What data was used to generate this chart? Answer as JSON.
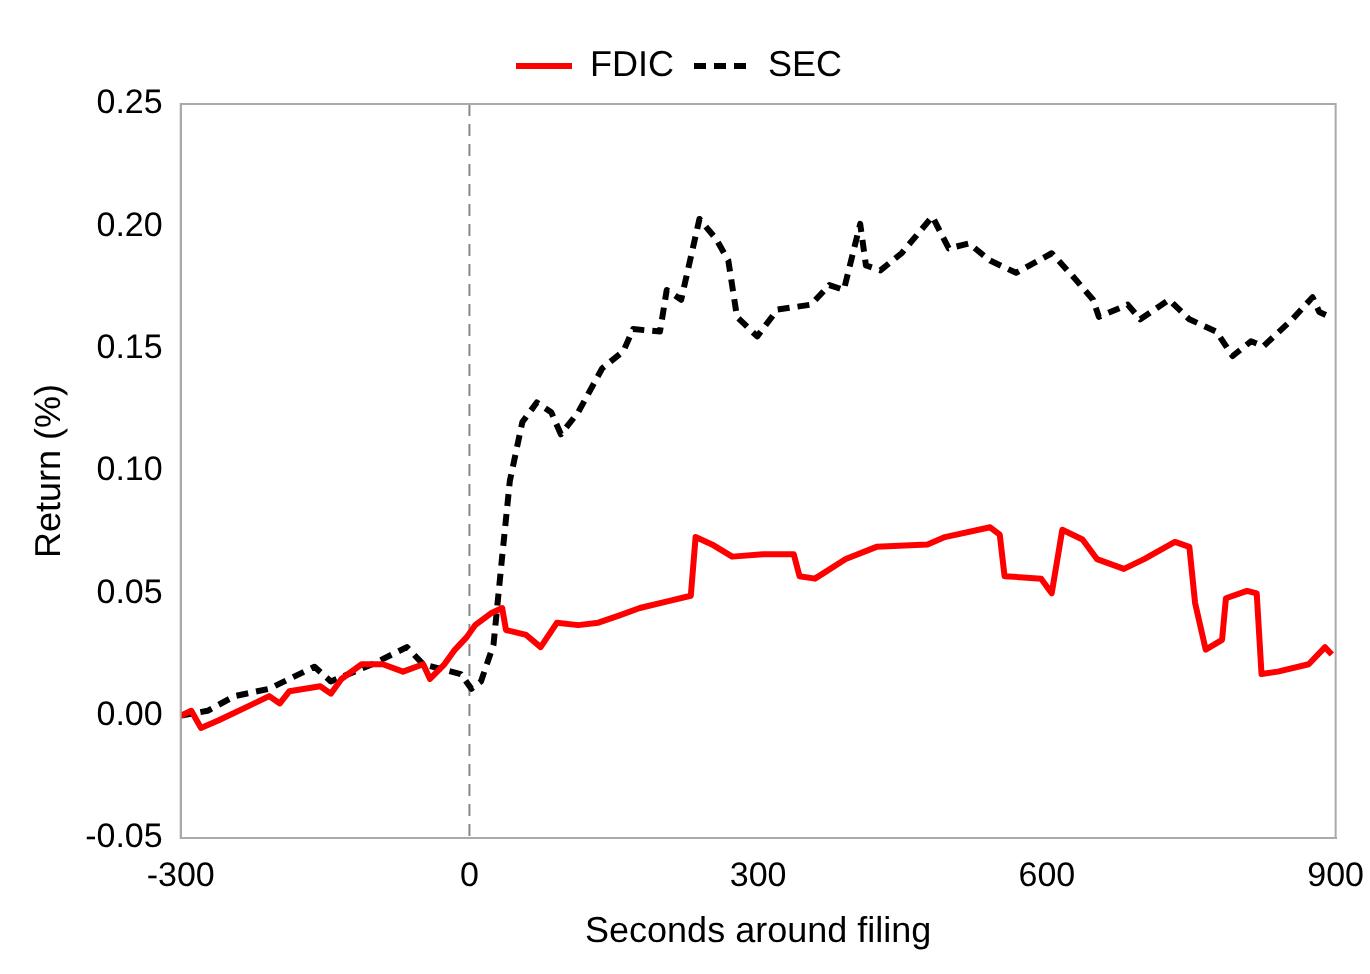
{
  "chart_data": {
    "type": "line",
    "xlabel": "Seconds around filing",
    "ylabel": "Return (%)",
    "xlim": [
      -300,
      900
    ],
    "xticks": [
      -300,
      0,
      300,
      600,
      900
    ],
    "ylim": [
      -0.05,
      0.25
    ],
    "yticks": [
      {
        "value": -0.05,
        "label": "-0.05"
      },
      {
        "value": 0,
        "label": "0.00"
      },
      {
        "value": 0.05,
        "label": "0.05"
      },
      {
        "value": 0.1,
        "label": "0.10"
      },
      {
        "value": 0.15,
        "label": "0.15"
      },
      {
        "value": 0.2,
        "label": "0.20"
      },
      {
        "value": 0.25,
        "label": "0.25"
      }
    ],
    "grid": false,
    "legend": "top",
    "ref_lines": [
      {
        "axis": "x",
        "value": 0,
        "color": "#888888",
        "line_style": "dashed"
      }
    ],
    "series": [
      {
        "name": "FDIC",
        "color": "#ff0000",
        "line_style": "solid",
        "x": [
          -300,
          -289,
          -279,
          -261,
          -229,
          -208,
          -197,
          -187,
          -155,
          -144,
          -133,
          -112,
          -90,
          -69,
          -48,
          -41,
          -26,
          -15,
          -3,
          6,
          23,
          34,
          38,
          59,
          74,
          91,
          113,
          134,
          156,
          177,
          209,
          230,
          235,
          252,
          273,
          305,
          337,
          343,
          359,
          391,
          423,
          476,
          494,
          541,
          551,
          556,
          594,
          605,
          616,
          637,
          652,
          680,
          701,
          733,
          748,
          754,
          765,
          782,
          786,
          808,
          818,
          823,
          840,
          872,
          889,
          896
        ],
        "values": [
          0,
          0.002,
          -0.005,
          -0.002,
          0.004,
          0.008,
          0.005,
          0.01,
          0.012,
          0.009,
          0.015,
          0.021,
          0.021,
          0.018,
          0.021,
          0.015,
          0.021,
          0.027,
          0.032,
          0.037,
          0.042,
          0.044,
          0.035,
          0.033,
          0.028,
          0.038,
          0.037,
          0.038,
          0.041,
          0.044,
          0.047,
          0.049,
          0.073,
          0.07,
          0.065,
          0.066,
          0.066,
          0.057,
          0.056,
          0.064,
          0.069,
          0.07,
          0.073,
          0.077,
          0.074,
          0.057,
          0.056,
          0.05,
          0.076,
          0.072,
          0.064,
          0.06,
          0.064,
          0.071,
          0.069,
          0.046,
          0.027,
          0.031,
          0.048,
          0.051,
          0.05,
          0.017,
          0.018,
          0.021,
          0.028,
          0.025
        ]
      },
      {
        "name": "SEC",
        "color": "#000000",
        "line_style": "dashed",
        "x": [
          -300,
          -272,
          -244,
          -208,
          -161,
          -144,
          -101,
          -65,
          -48,
          -9,
          2,
          12,
          25,
          34,
          42,
          55,
          70,
          85,
          95,
          113,
          138,
          160,
          170,
          198,
          205,
          220,
          239,
          256,
          269,
          278,
          299,
          320,
          355,
          374,
          389,
          406,
          412,
          427,
          449,
          481,
          498,
          519,
          541,
          568,
          605,
          626,
          648,
          654,
          684,
          697,
          727,
          748,
          776,
          793,
          812,
          825,
          855,
          876,
          883,
          894
        ],
        "values": [
          0,
          0.002,
          0.008,
          0.011,
          0.02,
          0.014,
          0.021,
          0.028,
          0.021,
          0.017,
          0.011,
          0.014,
          0.029,
          0.065,
          0.096,
          0.12,
          0.128,
          0.124,
          0.115,
          0.124,
          0.142,
          0.149,
          0.158,
          0.157,
          0.174,
          0.17,
          0.203,
          0.195,
          0.186,
          0.163,
          0.155,
          0.166,
          0.168,
          0.176,
          0.174,
          0.201,
          0.184,
          0.182,
          0.189,
          0.204,
          0.191,
          0.193,
          0.186,
          0.181,
          0.189,
          0.18,
          0.17,
          0.163,
          0.168,
          0.162,
          0.17,
          0.162,
          0.157,
          0.147,
          0.153,
          0.151,
          0.162,
          0.171,
          0.165,
          0.163
        ]
      }
    ]
  }
}
